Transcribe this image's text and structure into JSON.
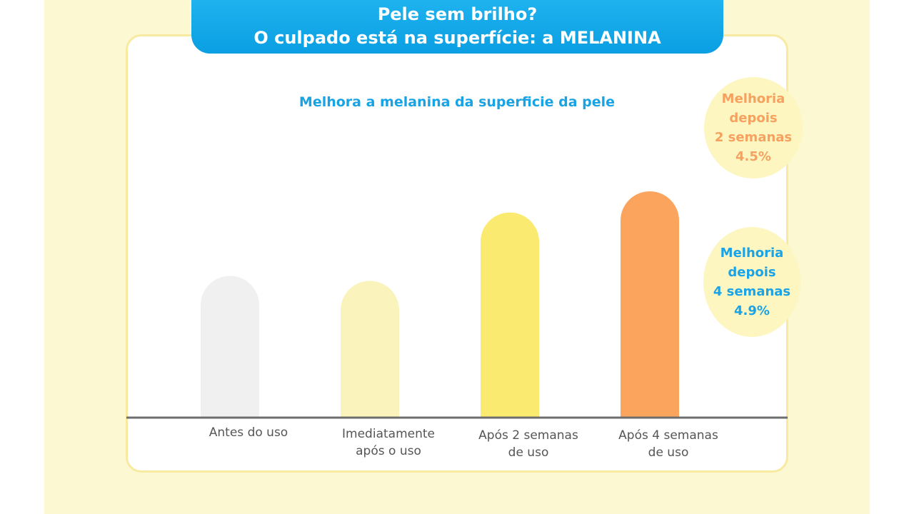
{
  "header": {
    "line1": "Pele sem brilho?",
    "line2": "O culpado está na superfície: a MELANINA"
  },
  "callouts": [
    {
      "lines": [
        "Melhoria",
        "depois",
        "2 semanas",
        "4.5%"
      ],
      "color": "#f6a160"
    },
    {
      "lines": [
        "Melhoria",
        "depois",
        "4 semanas",
        "4.9%"
      ],
      "color": "#1aa3e6"
    }
  ],
  "colors": {
    "accent_blue": "#0aa2e6",
    "card_border": "#f9eaa1",
    "background": "#fbf8d2"
  },
  "chart_data": {
    "type": "bar",
    "title": "Melhora a melanina da superficie  da pele",
    "categories": [
      [
        "Antes do uso"
      ],
      [
        "Imediatamente",
        "após o uso"
      ],
      [
        "Após 2 semanas",
        "de uso"
      ],
      [
        "Após 4 semanas",
        "de uso"
      ]
    ],
    "values": [
      100,
      96.5,
      145,
      160
    ],
    "bar_colors": [
      "#f0f0f0",
      "#faf4bc",
      "#faeb70",
      "#fba45d"
    ],
    "ylim": [
      0,
      160
    ],
    "xlabel": "",
    "ylabel": "",
    "grid": false,
    "legend": "none"
  }
}
